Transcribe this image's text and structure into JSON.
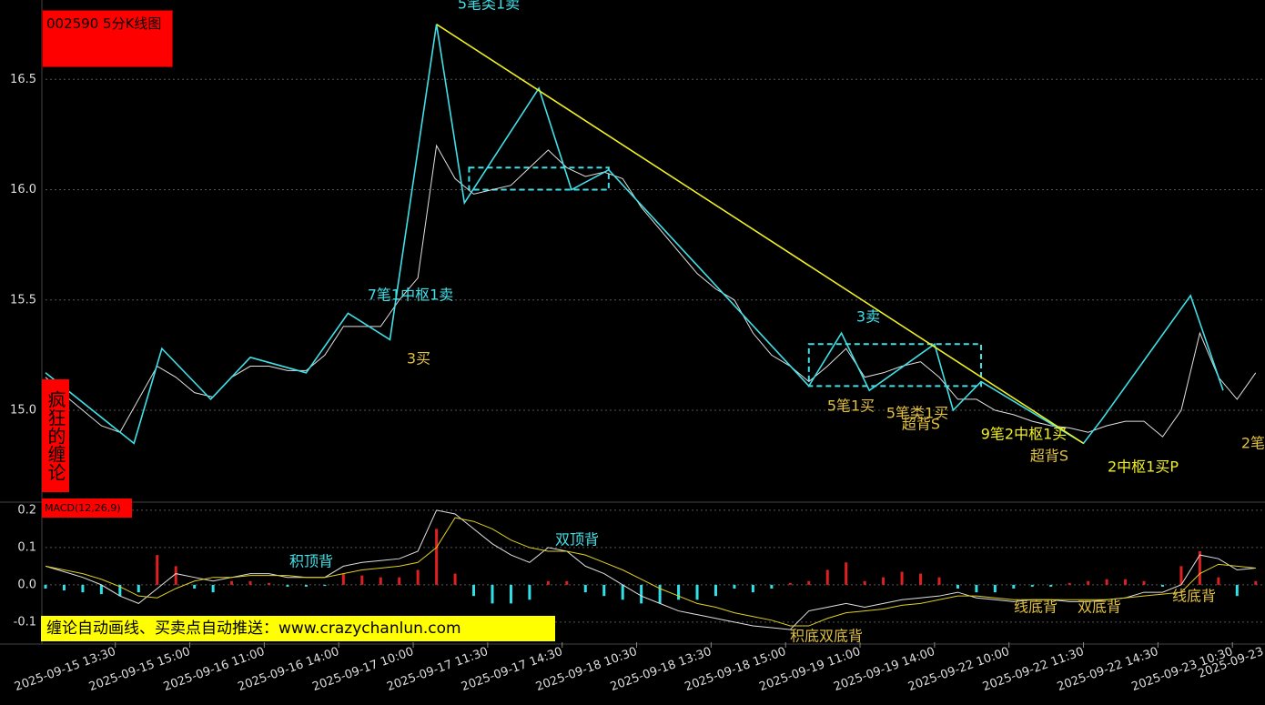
{
  "chart_data": [
    {
      "type": "line",
      "title": "002590 5分K线图",
      "side_label": "疯狂的缠论",
      "xlim": [
        0,
        262
      ],
      "ylim": [
        14.6,
        16.86
      ],
      "yticks": [
        16.5,
        {
          "value": 16,
          "label": "16.0"
        },
        15.5,
        {
          "value": 15,
          "label": "15.0"
        }
      ],
      "grid": true,
      "series": [
        {
          "color": "#e0e0e0",
          "x": [
            0,
            4,
            8,
            12,
            16,
            20,
            24,
            28,
            32,
            36,
            40,
            44,
            48,
            52,
            56,
            60,
            64,
            68,
            72,
            76,
            80,
            84,
            88,
            92,
            96,
            100,
            104,
            108,
            112,
            116,
            120,
            124,
            128,
            132,
            136,
            140,
            144,
            148,
            152,
            156,
            160,
            164,
            168,
            172,
            176,
            180,
            184,
            188,
            192,
            196,
            200,
            204,
            208,
            212,
            216,
            220,
            224,
            228,
            232,
            236,
            240,
            244,
            248,
            252,
            256,
            260
          ],
          "values": [
            15.15,
            15.07,
            15.0,
            14.93,
            14.9,
            15.05,
            15.2,
            15.15,
            15.08,
            15.06,
            15.15,
            15.2,
            15.2,
            15.18,
            15.18,
            15.25,
            15.38,
            15.38,
            15.38,
            15.5,
            15.6,
            16.2,
            16.05,
            15.98,
            16.0,
            16.02,
            16.1,
            16.18,
            16.1,
            16.06,
            16.08,
            16.05,
            15.92,
            15.82,
            15.72,
            15.62,
            15.55,
            15.5,
            15.35,
            15.25,
            15.2,
            15.13,
            15.2,
            15.28,
            15.15,
            15.17,
            15.2,
            15.22,
            15.15,
            15.05,
            15.05,
            15.0,
            14.98,
            14.95,
            14.93,
            14.92,
            14.9,
            14.93,
            14.95,
            14.95,
            14.88,
            15.0,
            15.35,
            15.15,
            15.05,
            15.17
          ]
        },
        {
          "color": "#40e0e8",
          "x": [
            0,
            19,
            25,
            35.5,
            44,
            56,
            65,
            74,
            84,
            90,
            106,
            113,
            121,
            164,
            171,
            177,
            191,
            195,
            201,
            223,
            227,
            246,
            253
          ],
          "values": [
            15.17,
            14.85,
            15.28,
            15.05,
            15.24,
            15.17,
            15.44,
            15.32,
            16.75,
            15.94,
            16.46,
            16.0,
            16.09,
            15.11,
            15.35,
            15.09,
            15.3,
            15.0,
            15.13,
            14.85,
            14.96,
            15.52,
            15.09
          ]
        },
        {
          "color": "#f0f020",
          "x": [
            84,
            223
          ],
          "values": [
            16.75,
            14.85
          ]
        }
      ],
      "zones": [
        {
          "x": [
            91,
            121
          ],
          "y": [
            16.0,
            16.1
          ]
        },
        {
          "x": [
            164,
            201
          ],
          "y": [
            15.11,
            15.3
          ]
        }
      ],
      "annotations": [
        {
          "text": "5笔类1卖",
          "color": "#40e0e8"
        },
        {
          "text": "7笔1中枢1卖",
          "color": "#40e0e8"
        },
        {
          "text": "3买",
          "color": "#e0c040"
        },
        {
          "text": "3卖",
          "color": "#40e0e8"
        },
        {
          "text": "5笔1买",
          "color": "#e0c040"
        },
        {
          "text": "5笔类1买",
          "color": "#e0c040"
        },
        {
          "text": "超背S",
          "color": "#e0c040"
        },
        {
          "text": "9笔2中枢1买",
          "color": "#f0f020"
        },
        {
          "text": "超背S",
          "color": "#e0c040"
        },
        {
          "text": "2中枢1买P",
          "color": "#f0f020"
        },
        {
          "text": "2笔",
          "color": "#e0c040"
        }
      ]
    },
    {
      "type": "macd",
      "title": "MACD(12,26,9)",
      "xlim": [
        0,
        262
      ],
      "ylim": [
        -0.154,
        0.212
      ],
      "yticks": [
        0.2,
        0.1,
        {
          "value": 0,
          "label": "0.0"
        },
        -0.1
      ],
      "xticks": [
        {
          "value": 15,
          "label": "2025-09-15 13:30"
        },
        {
          "value": 31,
          "label": "2025-09-15 15:00"
        },
        {
          "value": 47,
          "label": "2025-09-16 11:00"
        },
        {
          "value": 63,
          "label": "2025-09-16 14:00"
        },
        {
          "value": 79,
          "label": "2025-09-17 10:00"
        },
        {
          "value": 95,
          "label": "2025-09-17 11:30"
        },
        {
          "value": 111,
          "label": "2025-09-17 14:30"
        },
        {
          "value": 127,
          "label": "2025-09-18 10:30"
        },
        {
          "value": 143,
          "label": "2025-09-18 13:30"
        },
        {
          "value": 159,
          "label": "2025-09-18 15:00"
        },
        {
          "value": 175,
          "label": "2025-09-19 11:00"
        },
        {
          "value": 191,
          "label": "2025-09-19 14:00"
        },
        {
          "value": 207,
          "label": "2025-09-22 10:00"
        },
        {
          "value": 223,
          "label": "2025-09-22 11:30"
        },
        {
          "value": 239,
          "label": "2025-09-22 14:30"
        },
        {
          "value": 255,
          "label": "2025-09-23 10:30"
        },
        {
          "value": 271,
          "label": "2025-09-23"
        }
      ],
      "x": [
        0,
        4,
        8,
        12,
        16,
        20,
        24,
        28,
        32,
        36,
        40,
        44,
        48,
        52,
        56,
        60,
        64,
        68,
        72,
        76,
        80,
        84,
        88,
        92,
        96,
        100,
        104,
        108,
        112,
        116,
        120,
        124,
        128,
        132,
        136,
        140,
        144,
        148,
        152,
        156,
        160,
        164,
        168,
        172,
        176,
        180,
        184,
        188,
        192,
        196,
        200,
        204,
        208,
        212,
        216,
        220,
        224,
        228,
        232,
        236,
        240,
        244,
        248,
        252,
        256,
        260
      ],
      "hist_colors": [
        "#e02020",
        "#30e0e8"
      ],
      "histogram": [
        -0.01,
        -0.015,
        -0.02,
        -0.025,
        -0.03,
        -0.02,
        0.08,
        0.05,
        -0.01,
        -0.02,
        0.01,
        0.01,
        0.005,
        -0.005,
        -0.005,
        -0.003,
        0.03,
        0.025,
        0.02,
        0.02,
        0.04,
        0.15,
        0.03,
        -0.03,
        -0.05,
        -0.05,
        -0.04,
        0.01,
        0.01,
        -0.02,
        -0.03,
        -0.04,
        -0.05,
        -0.05,
        -0.04,
        -0.04,
        -0.03,
        -0.01,
        -0.02,
        -0.01,
        0.005,
        0.01,
        0.04,
        0.06,
        0.01,
        0.02,
        0.035,
        0.03,
        0.02,
        -0.01,
        -0.02,
        -0.02,
        -0.01,
        -0.005,
        -0.005,
        0.005,
        0.01,
        0.015,
        0.015,
        0.01,
        -0.005,
        0.05,
        0.09,
        0.02,
        -0.03,
        0.01
      ],
      "series": [
        {
          "color": "#e0e0e0",
          "values": [
            0.05,
            0.035,
            0.02,
            0.0,
            -0.03,
            -0.05,
            -0.01,
            0.03,
            0.02,
            0.01,
            0.02,
            0.03,
            0.03,
            0.02,
            0.02,
            0.02,
            0.05,
            0.06,
            0.065,
            0.07,
            0.09,
            0.2,
            0.19,
            0.15,
            0.11,
            0.08,
            0.06,
            0.1,
            0.09,
            0.05,
            0.03,
            0.0,
            -0.03,
            -0.05,
            -0.07,
            -0.08,
            -0.09,
            -0.1,
            -0.11,
            -0.115,
            -0.12,
            -0.07,
            -0.06,
            -0.05,
            -0.06,
            -0.05,
            -0.04,
            -0.035,
            -0.03,
            -0.02,
            -0.035,
            -0.04,
            -0.045,
            -0.04,
            -0.04,
            -0.045,
            -0.045,
            -0.04,
            -0.035,
            -0.02,
            -0.02,
            0.0,
            0.08,
            0.07,
            0.04,
            0.045
          ]
        },
        {
          "color": "#e0d020",
          "values": [
            0.05,
            0.04,
            0.03,
            0.015,
            -0.005,
            -0.03,
            -0.035,
            -0.01,
            0.01,
            0.02,
            0.02,
            0.025,
            0.025,
            0.025,
            0.02,
            0.02,
            0.03,
            0.04,
            0.045,
            0.05,
            0.06,
            0.1,
            0.18,
            0.17,
            0.15,
            0.12,
            0.1,
            0.09,
            0.09,
            0.08,
            0.06,
            0.04,
            0.015,
            -0.01,
            -0.03,
            -0.05,
            -0.06,
            -0.075,
            -0.085,
            -0.095,
            -0.11,
            -0.11,
            -0.09,
            -0.075,
            -0.07,
            -0.065,
            -0.055,
            -0.05,
            -0.04,
            -0.03,
            -0.03,
            -0.035,
            -0.04,
            -0.04,
            -0.04,
            -0.04,
            -0.04,
            -0.04,
            -0.035,
            -0.03,
            -0.025,
            -0.02,
            0.03,
            0.055,
            0.05,
            0.045
          ]
        }
      ],
      "annotations": [
        {
          "text": "积顶背",
          "color": "#40e0e8"
        },
        {
          "text": "双顶背",
          "color": "#40e0e8"
        },
        {
          "text": "积底双底背",
          "color": "#e0c040"
        },
        {
          "text": "线底背",
          "color": "#e0c040"
        },
        {
          "text": "双底背",
          "color": "#e0c040"
        },
        {
          "text": "线底背",
          "color": "#e0c040"
        }
      ]
    }
  ],
  "banner": "缠论自动画线、买卖点自动推送：www.crazychanlun.com"
}
